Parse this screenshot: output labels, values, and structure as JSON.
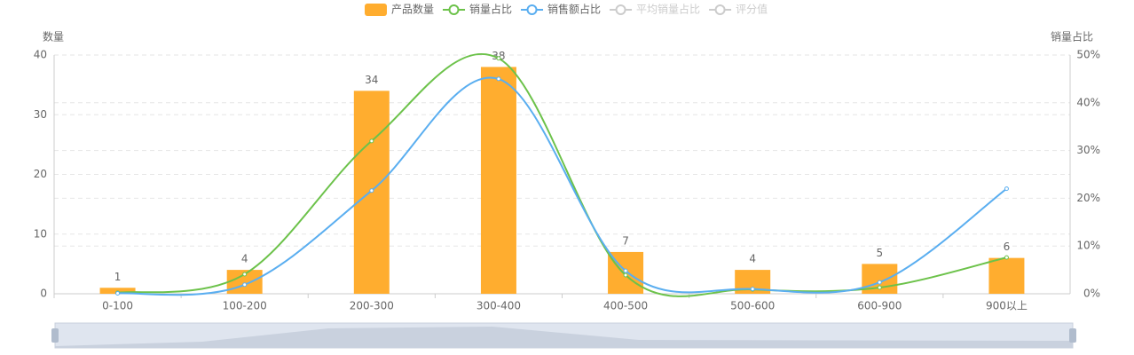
{
  "chart_data": {
    "type": "bar_line",
    "categories": [
      "0-100",
      "100-200",
      "200-300",
      "300-400",
      "400-500",
      "500-600",
      "600-900",
      "900以上"
    ],
    "y_axis_label": "数量",
    "y2_axis_label": "销量占比",
    "ylim": [
      0,
      40
    ],
    "yticks": [
      0,
      10,
      20,
      30,
      40
    ],
    "y2lim": [
      0,
      50
    ],
    "y2ticks": [
      {
        "value": 0,
        "label": "0%"
      },
      {
        "value": 10,
        "label": "10%"
      },
      {
        "value": 20,
        "label": "20%"
      },
      {
        "value": 30,
        "label": "30%"
      },
      {
        "value": 40,
        "label": "40%"
      },
      {
        "value": 50,
        "label": "50%"
      }
    ],
    "grid": true,
    "series": [
      {
        "name": "产品数量",
        "type": "bar",
        "color": "#ffad2f",
        "values": [
          1,
          4,
          34,
          38,
          7,
          4,
          5,
          6
        ]
      },
      {
        "name": "销量占比",
        "type": "line",
        "axis": "y2",
        "color": "#6cc24a",
        "values": [
          0.2,
          4.1,
          32,
          49.3,
          3.9,
          0.9,
          1.3,
          7.6
        ]
      },
      {
        "name": "销售额占比",
        "type": "line",
        "axis": "y2",
        "color": "#5aaef0",
        "values": [
          0.1,
          1.9,
          21.6,
          45,
          4.8,
          1.0,
          2.4,
          22
        ]
      }
    ],
    "legend_inactive": [
      "平均销量占比",
      "评分值"
    ],
    "inactive_color": "#ccc"
  }
}
